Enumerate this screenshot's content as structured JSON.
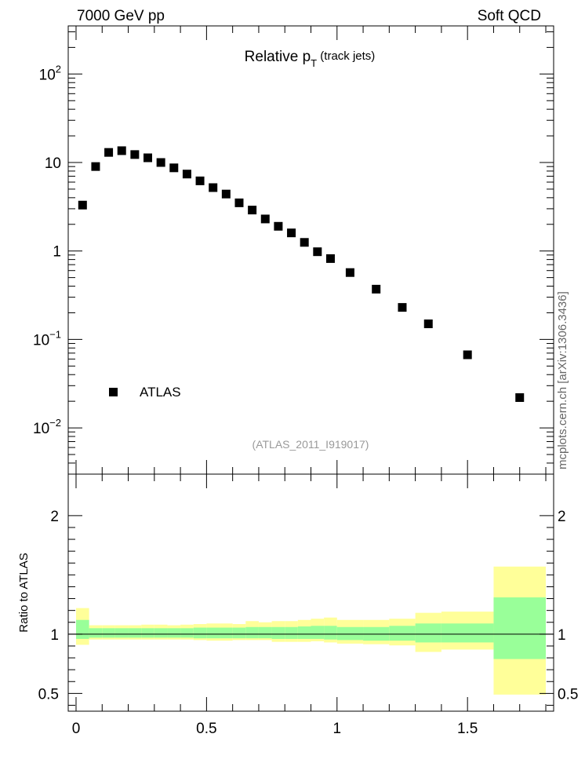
{
  "header": {
    "left": "7000 GeV pp",
    "right": "Soft QCD"
  },
  "side_label": "mcplots.cern.ch [arXiv:1306.3436]",
  "chart_data": [
    {
      "type": "scatter",
      "title_main": "Relative p",
      "title_sub": "T",
      "title_suffix": " (track jets)",
      "analysis_label": "(ATLAS_2011_I919017)",
      "yscale": "log",
      "xlim": [
        -0.03,
        1.83
      ],
      "ylim": [
        0.003,
        350
      ],
      "y_ticks": [
        {
          "value": 0.01,
          "base": "10",
          "exp": "−2"
        },
        {
          "value": 0.1,
          "base": "10",
          "exp": "−1"
        },
        {
          "value": 1,
          "base": "1",
          "exp": ""
        },
        {
          "value": 10,
          "base": "10",
          "exp": ""
        },
        {
          "value": 100,
          "base": "10",
          "exp": "2"
        }
      ],
      "legend": {
        "label": "ATLAS",
        "placement": "bottom-left"
      },
      "series": [
        {
          "name": "ATLAS",
          "x": [
            0.025,
            0.075,
            0.125,
            0.175,
            0.225,
            0.275,
            0.325,
            0.375,
            0.425,
            0.475,
            0.525,
            0.575,
            0.625,
            0.675,
            0.725,
            0.775,
            0.825,
            0.875,
            0.925,
            0.975,
            1.05,
            1.15,
            1.25,
            1.35,
            1.5,
            1.7
          ],
          "y": [
            3.3,
            9.0,
            13.0,
            13.6,
            12.3,
            11.3,
            10.0,
            8.7,
            7.4,
            6.2,
            5.2,
            4.4,
            3.5,
            2.9,
            2.3,
            1.9,
            1.6,
            1.25,
            0.98,
            0.82,
            0.57,
            0.37,
            0.23,
            0.15,
            0.067,
            0.022
          ]
        }
      ]
    },
    {
      "type": "band",
      "ylabel": "Ratio to ATLAS",
      "xlim": [
        -0.03,
        1.83
      ],
      "ylim": [
        0.35,
        2.35
      ],
      "y_ticks": [
        0.5,
        1,
        2
      ],
      "y_tick_labels": [
        "0.5",
        "1",
        "2"
      ],
      "x_ticks": [
        0,
        0.5,
        1,
        1.5
      ],
      "x_tick_labels": [
        "0",
        "0.5",
        "1",
        "1.5"
      ],
      "reference_line": 1,
      "colors": {
        "inner_band": "#99ff99",
        "outer_band": "#ffff99"
      },
      "bins": [
        {
          "x0": 0.0,
          "x1": 0.05,
          "inner": [
            0.96,
            1.12
          ],
          "outer": [
            0.91,
            1.22
          ]
        },
        {
          "x0": 0.05,
          "x1": 0.1,
          "inner": [
            0.97,
            1.05
          ],
          "outer": [
            0.955,
            1.075
          ]
        },
        {
          "x0": 0.1,
          "x1": 0.15,
          "inner": [
            0.97,
            1.05
          ],
          "outer": [
            0.955,
            1.075
          ]
        },
        {
          "x0": 0.15,
          "x1": 0.2,
          "inner": [
            0.97,
            1.05
          ],
          "outer": [
            0.955,
            1.075
          ]
        },
        {
          "x0": 0.2,
          "x1": 0.25,
          "inner": [
            0.97,
            1.05
          ],
          "outer": [
            0.955,
            1.075
          ]
        },
        {
          "x0": 0.25,
          "x1": 0.3,
          "inner": [
            0.97,
            1.05
          ],
          "outer": [
            0.955,
            1.08
          ]
        },
        {
          "x0": 0.3,
          "x1": 0.35,
          "inner": [
            0.97,
            1.05
          ],
          "outer": [
            0.955,
            1.08
          ]
        },
        {
          "x0": 0.35,
          "x1": 0.4,
          "inner": [
            0.97,
            1.05
          ],
          "outer": [
            0.955,
            1.075
          ]
        },
        {
          "x0": 0.4,
          "x1": 0.45,
          "inner": [
            0.97,
            1.05
          ],
          "outer": [
            0.955,
            1.08
          ]
        },
        {
          "x0": 0.45,
          "x1": 0.5,
          "inner": [
            0.965,
            1.055
          ],
          "outer": [
            0.95,
            1.085
          ]
        },
        {
          "x0": 0.5,
          "x1": 0.55,
          "inner": [
            0.965,
            1.055
          ],
          "outer": [
            0.945,
            1.09
          ]
        },
        {
          "x0": 0.55,
          "x1": 0.6,
          "inner": [
            0.965,
            1.055
          ],
          "outer": [
            0.945,
            1.09
          ]
        },
        {
          "x0": 0.6,
          "x1": 0.65,
          "inner": [
            0.965,
            1.055
          ],
          "outer": [
            0.95,
            1.085
          ]
        },
        {
          "x0": 0.65,
          "x1": 0.7,
          "inner": [
            0.965,
            1.06
          ],
          "outer": [
            0.95,
            1.11
          ]
        },
        {
          "x0": 0.7,
          "x1": 0.75,
          "inner": [
            0.965,
            1.06
          ],
          "outer": [
            0.95,
            1.1
          ]
        },
        {
          "x0": 0.75,
          "x1": 0.8,
          "inner": [
            0.96,
            1.06
          ],
          "outer": [
            0.935,
            1.11
          ]
        },
        {
          "x0": 0.8,
          "x1": 0.85,
          "inner": [
            0.96,
            1.06
          ],
          "outer": [
            0.935,
            1.11
          ]
        },
        {
          "x0": 0.85,
          "x1": 0.9,
          "inner": [
            0.96,
            1.065
          ],
          "outer": [
            0.935,
            1.12
          ]
        },
        {
          "x0": 0.9,
          "x1": 0.95,
          "inner": [
            0.96,
            1.07
          ],
          "outer": [
            0.94,
            1.13
          ]
        },
        {
          "x0": 0.95,
          "x1": 1.0,
          "inner": [
            0.955,
            1.07
          ],
          "outer": [
            0.93,
            1.14
          ]
        },
        {
          "x0": 1.0,
          "x1": 1.1,
          "inner": [
            0.95,
            1.06
          ],
          "outer": [
            0.92,
            1.12
          ]
        },
        {
          "x0": 1.1,
          "x1": 1.2,
          "inner": [
            0.945,
            1.06
          ],
          "outer": [
            0.915,
            1.12
          ]
        },
        {
          "x0": 1.2,
          "x1": 1.3,
          "inner": [
            0.945,
            1.07
          ],
          "outer": [
            0.905,
            1.13
          ]
        },
        {
          "x0": 1.3,
          "x1": 1.4,
          "inner": [
            0.93,
            1.09
          ],
          "outer": [
            0.85,
            1.18
          ]
        },
        {
          "x0": 1.4,
          "x1": 1.6,
          "inner": [
            0.93,
            1.09
          ],
          "outer": [
            0.87,
            1.19
          ]
        },
        {
          "x0": 1.6,
          "x1": 1.8,
          "inner": [
            0.79,
            1.31
          ],
          "outer": [
            0.49,
            1.57
          ]
        }
      ]
    }
  ]
}
